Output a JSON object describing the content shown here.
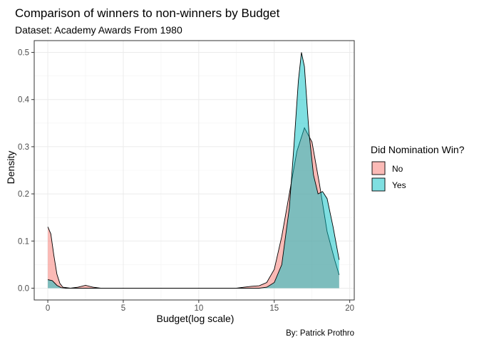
{
  "chart_data": {
    "type": "area",
    "title": "Comparison of winners to non-winners by Budget",
    "subtitle": "Dataset: Academy Awards From 1980",
    "caption": "By: Patrick Prothro",
    "xlabel": "Budget(log scale)",
    "ylabel": "Density",
    "xlim": [
      -0.9,
      20.3
    ],
    "ylim": [
      -0.025,
      0.525
    ],
    "x_ticks": [
      0,
      5,
      10,
      15,
      20
    ],
    "x_tick_labels": [
      "0",
      "5",
      "10",
      "15",
      "20"
    ],
    "y_ticks": [
      0.0,
      0.1,
      0.2,
      0.3,
      0.4,
      0.5
    ],
    "y_tick_labels": [
      "0.0",
      "0.1",
      "0.2",
      "0.3",
      "0.4",
      "0.5"
    ],
    "grid": true,
    "legend": {
      "title": "Did Nomination Win?",
      "placement": "right"
    },
    "series": [
      {
        "name": "No",
        "color": "#F8766D",
        "points": [
          [
            0.0,
            0.13
          ],
          [
            0.2,
            0.115
          ],
          [
            0.4,
            0.07
          ],
          [
            0.6,
            0.03
          ],
          [
            0.8,
            0.01
          ],
          [
            1.0,
            0.002
          ],
          [
            1.5,
            0.0
          ],
          [
            2.0,
            0.002
          ],
          [
            2.5,
            0.006
          ],
          [
            3.0,
            0.002
          ],
          [
            3.5,
            0.0
          ],
          [
            12.5,
            0.0
          ],
          [
            13.0,
            0.002
          ],
          [
            13.5,
            0.004
          ],
          [
            14.0,
            0.005
          ],
          [
            14.5,
            0.012
          ],
          [
            15.0,
            0.04
          ],
          [
            15.5,
            0.11
          ],
          [
            16.0,
            0.2
          ],
          [
            16.5,
            0.29
          ],
          [
            17.0,
            0.34
          ],
          [
            17.5,
            0.31
          ],
          [
            18.0,
            0.22
          ],
          [
            18.5,
            0.12
          ],
          [
            19.0,
            0.06
          ],
          [
            19.3,
            0.028
          ]
        ]
      },
      {
        "name": "Yes",
        "color": "#00BFC4",
        "points": [
          [
            0.0,
            0.018
          ],
          [
            0.3,
            0.016
          ],
          [
            0.6,
            0.006
          ],
          [
            0.9,
            0.001
          ],
          [
            1.2,
            0.0
          ],
          [
            14.0,
            0.0
          ],
          [
            14.5,
            0.002
          ],
          [
            15.0,
            0.012
          ],
          [
            15.5,
            0.05
          ],
          [
            16.0,
            0.17
          ],
          [
            16.3,
            0.3
          ],
          [
            16.6,
            0.44
          ],
          [
            16.8,
            0.5
          ],
          [
            17.0,
            0.47
          ],
          [
            17.3,
            0.33
          ],
          [
            17.6,
            0.24
          ],
          [
            17.9,
            0.2
          ],
          [
            18.2,
            0.205
          ],
          [
            18.5,
            0.19
          ],
          [
            18.9,
            0.13
          ],
          [
            19.3,
            0.06
          ]
        ]
      }
    ]
  }
}
